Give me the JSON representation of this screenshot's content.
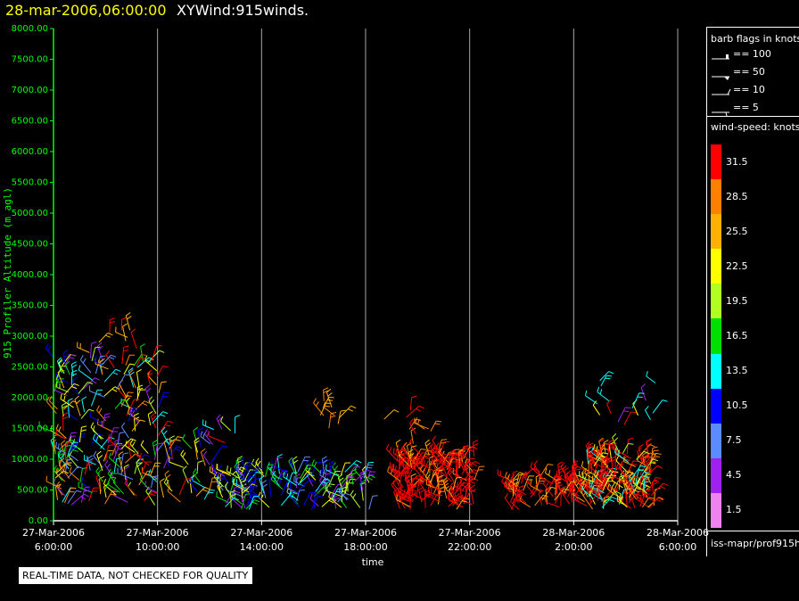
{
  "header": {
    "date": "28-mar-2006,06:00:00",
    "name": "XYWind:915winds."
  },
  "chart_data": {
    "type": "scatter",
    "title": "28-mar-2006,06:00:00 XYWind:915winds.",
    "ylabel": "915 Profiler Altitude (m agl)",
    "xlabel": "time",
    "ylim": [
      0,
      8000
    ],
    "y_ticks": [
      "0.00",
      "500.00",
      "1000.00",
      "1500.00",
      "2000.00",
      "2500.00",
      "3000.00",
      "3500.00",
      "4000.00",
      "4500.00",
      "5000.00",
      "5500.00",
      "6000.00",
      "6500.00",
      "7000.00",
      "7500.00",
      "8000.00"
    ],
    "x_ticks": [
      {
        "date": "27-Mar-2006",
        "time": "6:00:00"
      },
      {
        "date": "27-Mar-2006",
        "time": "10:00:00"
      },
      {
        "date": "27-Mar-2006",
        "time": "14:00:00"
      },
      {
        "date": "27-Mar-2006",
        "time": "18:00:00"
      },
      {
        "date": "27-Mar-2006",
        "time": "22:00:00"
      },
      {
        "date": "28-Mar-2006",
        "time": "2:00:00"
      },
      {
        "date": "28-Mar-2006",
        "time": "6:00:00"
      }
    ],
    "grid": "vertical lines at time ticks",
    "data_groups": [
      {
        "hours": [
          0,
          4.1
        ],
        "alt_m": [
          200,
          2700
        ],
        "speed_kt": "1.5-31.5 mixed"
      },
      {
        "hours": [
          4.1,
          7.0
        ],
        "alt_m": [
          250,
          1500
        ],
        "speed_kt": "4.5-31.5 mixed"
      },
      {
        "hours": [
          6.5,
          12.2
        ],
        "alt_m": [
          150,
          800
        ],
        "speed_kt": "4.5-22.5"
      },
      {
        "hours": [
          13.2,
          16.2
        ],
        "alt_m": [
          150,
          1100
        ],
        "speed_kt": "25.5-31.5"
      },
      {
        "hours": [
          19.2,
          20.5
        ],
        "alt_m": [
          150,
          700
        ],
        "speed_kt": "28.5-31.5"
      },
      {
        "hours": [
          20.5,
          23.2
        ],
        "alt_m": [
          150,
          1100
        ],
        "speed_kt": "25.5-31.5"
      },
      {
        "hours": [
          20.8,
          23.2
        ],
        "alt_m": [
          1500,
          2300
        ],
        "speed_kt": "1.5-28.5 mixed"
      }
    ]
  },
  "legend": {
    "barb_title": "barb flags in knots",
    "barbs": [
      "== 100",
      "== 50",
      "== 10",
      "== 5"
    ],
    "speed_title": "wind-speed: knots",
    "colorbar": [
      {
        "label": "31.5",
        "color": "#ff0000"
      },
      {
        "label": "28.5",
        "color": "#ff8000"
      },
      {
        "label": "25.5",
        "color": "#ffb000"
      },
      {
        "label": "22.5",
        "color": "#ffff00"
      },
      {
        "label": "19.5",
        "color": "#b0ff20"
      },
      {
        "label": "16.5",
        "color": "#00e000"
      },
      {
        "label": "13.5",
        "color": "#00ffff"
      },
      {
        "label": "10.5",
        "color": "#0000ff"
      },
      {
        "label": "7.5",
        "color": "#5a8cff"
      },
      {
        "label": "4.5",
        "color": "#a020f0"
      },
      {
        "label": "1.5",
        "color": "#ee82ee"
      }
    ],
    "source": "iss-mapr/prof915h"
  },
  "footer": {
    "note": "REAL-TIME DATA, NOT CHECKED FOR QUALITY"
  }
}
